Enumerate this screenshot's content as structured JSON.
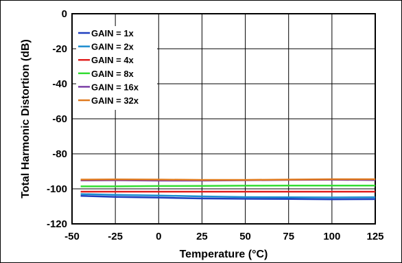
{
  "chart_data": {
    "type": "line",
    "title": "",
    "xlabel": "Temperature (°C)",
    "ylabel": "Total Harmonic Distortion (dB)",
    "xlim": [
      -50,
      125
    ],
    "ylim": [
      -120,
      0
    ],
    "xticks": [
      -50,
      -25,
      0,
      25,
      50,
      75,
      100,
      125
    ],
    "yticks": [
      0,
      -20,
      -40,
      -60,
      -80,
      -100,
      -120
    ],
    "grid": true,
    "legend_position": "top-left",
    "series": [
      {
        "name": "GAIN = 1x",
        "color": "#1f3fbf",
        "x": [
          -45,
          -25,
          0,
          25,
          50,
          75,
          100,
          125
        ],
        "y": [
          -104.0,
          -104.6,
          -105.0,
          -105.5,
          -105.7,
          -105.8,
          -106.0,
          -105.9
        ]
      },
      {
        "name": "GAIN = 2x",
        "color": "#1a8ccf",
        "x": [
          -45,
          -25,
          0,
          25,
          50,
          75,
          100,
          125
        ],
        "y": [
          -103.0,
          -103.4,
          -103.8,
          -104.3,
          -104.7,
          -104.8,
          -104.9,
          -104.8
        ]
      },
      {
        "name": "GAIN = 4x",
        "color": "#e0201f",
        "x": [
          -45,
          -25,
          0,
          25,
          50,
          75,
          100,
          125
        ],
        "y": [
          -101.6,
          -101.6,
          -101.6,
          -101.6,
          -101.6,
          -101.6,
          -101.6,
          -101.6
        ]
      },
      {
        "name": "GAIN = 8x",
        "color": "#33dd33",
        "x": [
          -45,
          -25,
          0,
          25,
          50,
          75,
          100,
          125
        ],
        "y": [
          -98.6,
          -98.6,
          -98.4,
          -98.3,
          -98.2,
          -98.1,
          -98.1,
          -98.1
        ]
      },
      {
        "name": "GAIN = 16x",
        "color": "#7b3fa6",
        "x": [
          -45,
          -25,
          0,
          25,
          50,
          75,
          100,
          125
        ],
        "y": [
          -95.2,
          -95.1,
          -95.3,
          -95.3,
          -95.1,
          -94.9,
          -94.8,
          -95.0
        ]
      },
      {
        "name": "GAIN = 32x",
        "color": "#e07a1f",
        "x": [
          -45,
          -25,
          0,
          25,
          50,
          75,
          100,
          125
        ],
        "y": [
          -94.7,
          -94.6,
          -94.7,
          -94.9,
          -94.9,
          -94.7,
          -94.5,
          -94.5
        ]
      }
    ]
  }
}
